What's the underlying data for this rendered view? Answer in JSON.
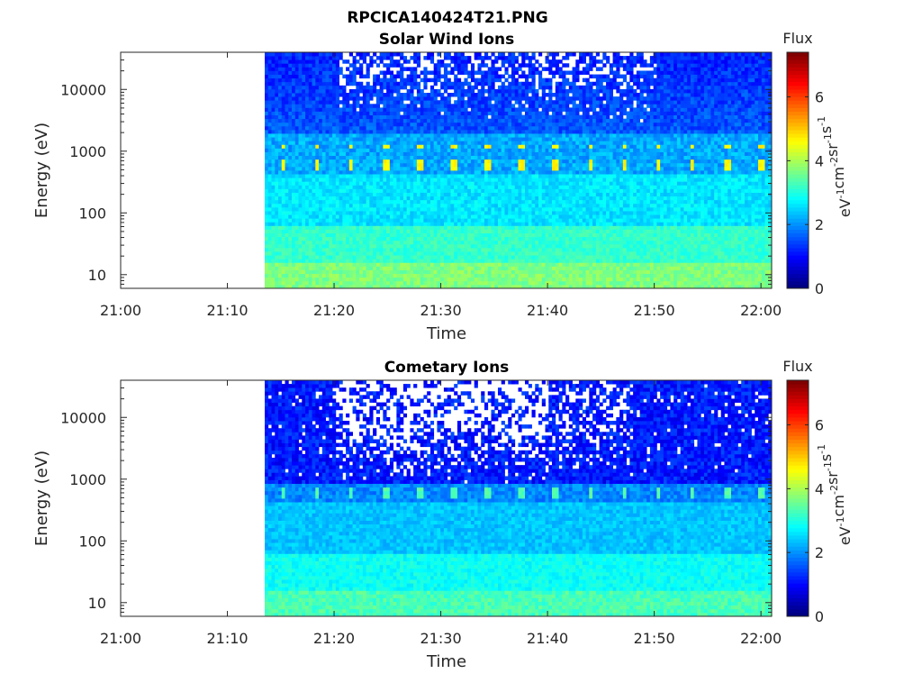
{
  "figure": {
    "title": "RPCICA140424T21.PNG"
  },
  "colors": {
    "colormap": "jet",
    "no_data": "#ffffff",
    "axis": "#262626"
  },
  "chart_data": [
    {
      "type": "heatmap",
      "title": "Solar Wind Ions",
      "xlabel": "Time",
      "ylabel": "Energy (eV)",
      "x_ticks": [
        "21:00",
        "21:10",
        "21:20",
        "21:30",
        "21:40",
        "21:50",
        "22:00"
      ],
      "y_ticks": [
        "10",
        "100",
        "1000",
        "10000"
      ],
      "y_scale": "log",
      "xlim": [
        "21:00",
        "22:01"
      ],
      "ylim": [
        6,
        40000
      ],
      "data_start": "21:13:30",
      "colorbar": {
        "title": "Flux",
        "label": "eV-1cm-2sr-1s-1",
        "ticks": [
          "0",
          "2",
          "4",
          "6"
        ],
        "range": [
          0,
          7.4
        ]
      },
      "notes": "log10 flux spectrogram; bands near 600 eV and 1200 eV peak around 4.5 at periodic sweeps; low-energy rows (<15 eV) around 3.5"
    },
    {
      "type": "heatmap",
      "title": "Cometary Ions",
      "xlabel": "Time",
      "ylabel": "Energy (eV)",
      "x_ticks": [
        "21:00",
        "21:10",
        "21:20",
        "21:30",
        "21:40",
        "21:50",
        "22:00"
      ],
      "y_ticks": [
        "10",
        "100",
        "1000",
        "10000"
      ],
      "y_scale": "log",
      "xlim": [
        "21:00",
        "22:01"
      ],
      "ylim": [
        6,
        40000
      ],
      "data_start": "21:13:30",
      "colorbar": {
        "title": "Flux",
        "label": "eV-1cm-2sr-1s-1",
        "ticks": [
          "0",
          "2",
          "4",
          "6"
        ],
        "range": [
          0,
          7.4
        ]
      },
      "notes": "high-energy rows mostly no-data (white) between 21:20 and 21:40; band near 600 eV around 3"
    }
  ]
}
